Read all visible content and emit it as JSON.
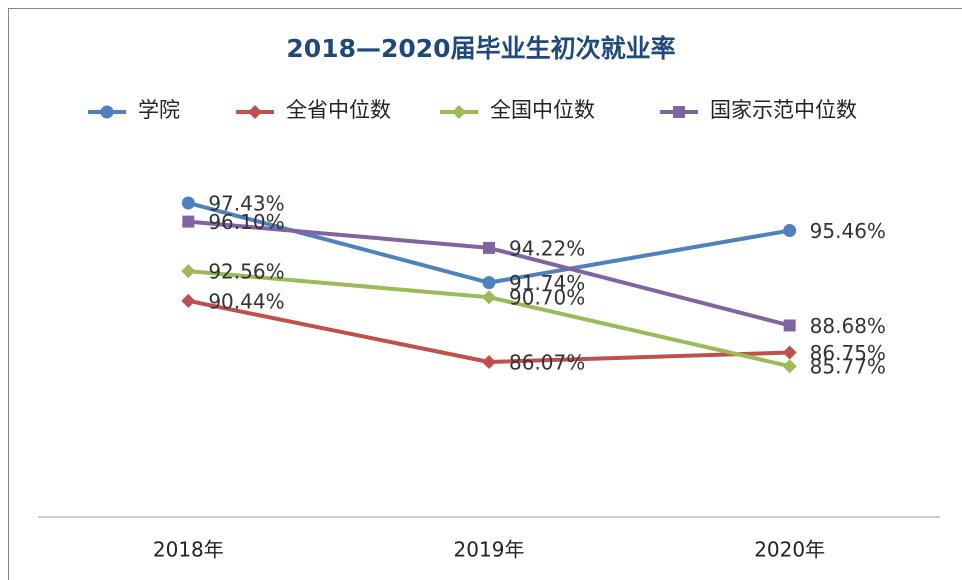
{
  "chart_data": {
    "type": "line",
    "title": "2018—2020届毕业生初次就业率",
    "categories": [
      "2018年",
      "2019年",
      "2020年"
    ],
    "series": [
      {
        "name": "学院",
        "color": "#4f81bd",
        "marker": "circle",
        "values": [
          97.43,
          91.74,
          95.46
        ],
        "value_labels": [
          "97.43%",
          "91.74%",
          "95.46%"
        ]
      },
      {
        "name": "全省中位数",
        "color": "#c0504d",
        "marker": "diamond",
        "values": [
          90.44,
          86.07,
          86.75
        ],
        "value_labels": [
          "90.44%",
          "86.07%",
          "86.75%"
        ]
      },
      {
        "name": "全国中位数",
        "color": "#9bbb59",
        "marker": "diamond",
        "values": [
          92.56,
          90.7,
          85.77
        ],
        "value_labels": [
          "92.56%",
          "90.70%",
          "85.77%"
        ]
      },
      {
        "name": "国家示范中位数",
        "color": "#8064a2",
        "marker": "square",
        "values": [
          96.1,
          94.22,
          88.68
        ],
        "value_labels": [
          "96.10%",
          "94.22%",
          "88.68%"
        ]
      }
    ],
    "ylim": [
      75,
      100
    ],
    "legend": "top"
  }
}
